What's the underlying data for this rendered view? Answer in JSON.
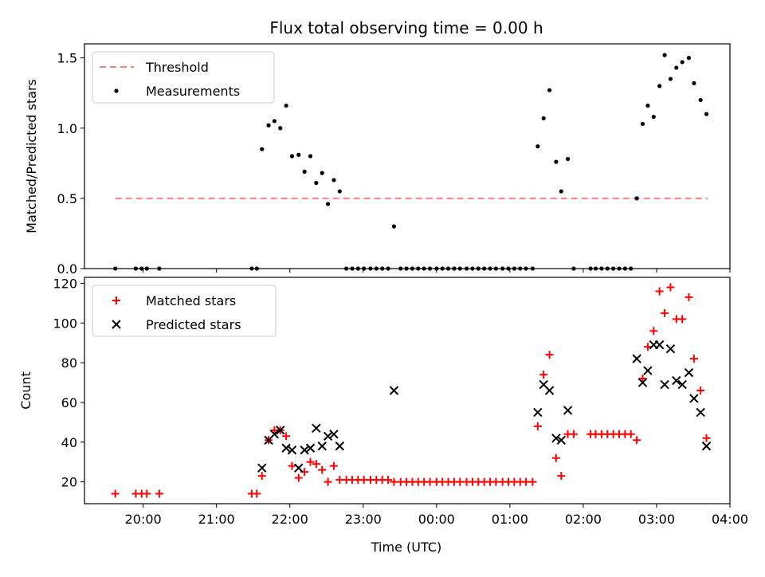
{
  "chart_data": {
    "title": "Flux total observing time = 0.00 h",
    "xlabel": "Time (UTC)",
    "x_ticks": [
      "20:00",
      "21:00",
      "22:00",
      "23:00",
      "00:00",
      "01:00",
      "02:00",
      "03:00",
      "04:00"
    ],
    "x_unit": "hours since 19:00 UTC",
    "xlim": [
      0.2,
      9.0
    ],
    "colors": {
      "threshold": "#ff7f7f",
      "measurements": "#000000",
      "matched": "#ff0000",
      "predicted": "#000000"
    },
    "subplots": [
      {
        "type": "scatter",
        "ylabel": "Matched/Predicted stars",
        "ylim": [
          0,
          1.6
        ],
        "y_ticks": [
          "0.0",
          "0.5",
          "1.0",
          "1.5"
        ],
        "legend": {
          "position": "top-left",
          "entries": [
            "Threshold",
            "Measurements"
          ]
        },
        "threshold": {
          "name": "Threshold",
          "y": 0.5,
          "x_range": [
            0.62,
            8.7
          ]
        },
        "series": [
          {
            "name": "Measurements",
            "points": [
              [
                0.62,
                0
              ],
              [
                0.9,
                0
              ],
              [
                0.98,
                0
              ],
              [
                1.05,
                0
              ],
              [
                1.22,
                0
              ],
              [
                2.48,
                0
              ],
              [
                2.55,
                0
              ],
              [
                2.62,
                0.85
              ],
              [
                2.71,
                1.02
              ],
              [
                2.79,
                1.05
              ],
              [
                2.87,
                1.0
              ],
              [
                2.95,
                1.16
              ],
              [
                3.03,
                0.8
              ],
              [
                3.12,
                0.81
              ],
              [
                3.2,
                0.69
              ],
              [
                3.28,
                0.8
              ],
              [
                3.36,
                0.61
              ],
              [
                3.44,
                0.68
              ],
              [
                3.52,
                0.46
              ],
              [
                3.6,
                0.63
              ],
              [
                3.68,
                0.55
              ],
              [
                3.77,
                0
              ],
              [
                3.85,
                0
              ],
              [
                3.93,
                0
              ],
              [
                4.01,
                0
              ],
              [
                4.1,
                0
              ],
              [
                4.18,
                0
              ],
              [
                4.26,
                0
              ],
              [
                4.34,
                0
              ],
              [
                4.42,
                0.3
              ],
              [
                4.51,
                0
              ],
              [
                4.59,
                0
              ],
              [
                4.67,
                0
              ],
              [
                4.75,
                0
              ],
              [
                4.83,
                0
              ],
              [
                4.91,
                0
              ],
              [
                5.0,
                0
              ],
              [
                5.08,
                0
              ],
              [
                5.16,
                0
              ],
              [
                5.24,
                0
              ],
              [
                5.32,
                0
              ],
              [
                5.41,
                0
              ],
              [
                5.49,
                0
              ],
              [
                5.57,
                0
              ],
              [
                5.65,
                0
              ],
              [
                5.73,
                0
              ],
              [
                5.81,
                0
              ],
              [
                5.9,
                0
              ],
              [
                5.98,
                0
              ],
              [
                6.06,
                0
              ],
              [
                6.14,
                0
              ],
              [
                6.22,
                0
              ],
              [
                6.31,
                0
              ],
              [
                6.38,
                0.87
              ],
              [
                6.46,
                1.07
              ],
              [
                6.54,
                1.27
              ],
              [
                6.63,
                0.76
              ],
              [
                6.7,
                0.55
              ],
              [
                6.79,
                0.78
              ],
              [
                6.87,
                0
              ],
              [
                7.1,
                0
              ],
              [
                7.17,
                0
              ],
              [
                7.25,
                0
              ],
              [
                7.33,
                0
              ],
              [
                7.41,
                0
              ],
              [
                7.49,
                0
              ],
              [
                7.57,
                0
              ],
              [
                7.65,
                0
              ],
              [
                7.73,
                0.5
              ],
              [
                7.81,
                1.03
              ],
              [
                7.88,
                1.16
              ],
              [
                7.96,
                1.08
              ],
              [
                8.04,
                1.3
              ],
              [
                8.11,
                1.52
              ],
              [
                8.19,
                1.35
              ],
              [
                8.27,
                1.43
              ],
              [
                8.35,
                1.47
              ],
              [
                8.44,
                1.5
              ],
              [
                8.51,
                1.32
              ],
              [
                8.6,
                1.2
              ],
              [
                8.68,
                1.1
              ]
            ]
          }
        ]
      },
      {
        "type": "scatter",
        "ylabel": "Count",
        "ylim": [
          9,
          123
        ],
        "y_ticks": [
          "20",
          "40",
          "60",
          "80",
          "100",
          "120"
        ],
        "legend": {
          "position": "top-left",
          "entries": [
            "Matched stars",
            "Predicted stars"
          ]
        },
        "series": [
          {
            "name": "Matched stars",
            "marker": "plus",
            "points": [
              [
                0.62,
                14
              ],
              [
                0.9,
                14
              ],
              [
                0.98,
                14
              ],
              [
                1.05,
                14
              ],
              [
                1.22,
                14
              ],
              [
                2.48,
                14
              ],
              [
                2.55,
                14
              ],
              [
                2.62,
                23
              ],
              [
                2.71,
                41
              ],
              [
                2.79,
                46
              ],
              [
                2.87,
                46
              ],
              [
                2.95,
                43
              ],
              [
                3.03,
                28
              ],
              [
                3.12,
                22
              ],
              [
                3.2,
                25
              ],
              [
                3.28,
                30
              ],
              [
                3.36,
                29
              ],
              [
                3.44,
                26
              ],
              [
                3.52,
                20
              ],
              [
                3.6,
                28
              ],
              [
                3.68,
                21
              ],
              [
                3.77,
                21
              ],
              [
                3.85,
                21
              ],
              [
                3.93,
                21
              ],
              [
                4.01,
                21
              ],
              [
                4.1,
                21
              ],
              [
                4.18,
                21
              ],
              [
                4.26,
                21
              ],
              [
                4.34,
                21
              ],
              [
                4.42,
                20
              ],
              [
                4.51,
                20
              ],
              [
                4.59,
                20
              ],
              [
                4.67,
                20
              ],
              [
                4.75,
                20
              ],
              [
                4.83,
                20
              ],
              [
                4.91,
                20
              ],
              [
                5.0,
                20
              ],
              [
                5.08,
                20
              ],
              [
                5.16,
                20
              ],
              [
                5.24,
                20
              ],
              [
                5.32,
                20
              ],
              [
                5.41,
                20
              ],
              [
                5.49,
                20
              ],
              [
                5.57,
                20
              ],
              [
                5.65,
                20
              ],
              [
                5.73,
                20
              ],
              [
                5.81,
                20
              ],
              [
                5.9,
                20
              ],
              [
                5.98,
                20
              ],
              [
                6.06,
                20
              ],
              [
                6.14,
                20
              ],
              [
                6.22,
                20
              ],
              [
                6.31,
                20
              ],
              [
                6.38,
                48
              ],
              [
                6.46,
                74
              ],
              [
                6.54,
                84
              ],
              [
                6.63,
                32
              ],
              [
                6.7,
                23
              ],
              [
                6.79,
                44
              ],
              [
                6.87,
                44
              ],
              [
                7.1,
                44
              ],
              [
                7.17,
                44
              ],
              [
                7.25,
                44
              ],
              [
                7.33,
                44
              ],
              [
                7.41,
                44
              ],
              [
                7.49,
                44
              ],
              [
                7.57,
                44
              ],
              [
                7.65,
                44
              ],
              [
                7.73,
                41
              ],
              [
                7.81,
                72
              ],
              [
                7.88,
                88
              ],
              [
                7.96,
                96
              ],
              [
                8.04,
                116
              ],
              [
                8.11,
                105
              ],
              [
                8.19,
                118
              ],
              [
                8.27,
                102
              ],
              [
                8.35,
                102
              ],
              [
                8.44,
                113
              ],
              [
                8.51,
                82
              ],
              [
                8.6,
                66
              ],
              [
                8.68,
                42
              ]
            ]
          },
          {
            "name": "Predicted stars",
            "marker": "x",
            "points": [
              [
                2.62,
                27
              ],
              [
                2.71,
                41
              ],
              [
                2.79,
                44
              ],
              [
                2.87,
                46
              ],
              [
                2.95,
                37
              ],
              [
                3.03,
                36
              ],
              [
                3.12,
                27
              ],
              [
                3.2,
                36
              ],
              [
                3.28,
                37
              ],
              [
                3.36,
                47
              ],
              [
                3.44,
                38
              ],
              [
                3.52,
                43
              ],
              [
                3.6,
                44
              ],
              [
                3.68,
                38
              ],
              [
                4.42,
                66
              ],
              [
                6.38,
                55
              ],
              [
                6.46,
                69
              ],
              [
                6.54,
                66
              ],
              [
                6.63,
                42
              ],
              [
                6.7,
                41
              ],
              [
                6.79,
                56
              ],
              [
                7.73,
                82
              ],
              [
                7.81,
                70
              ],
              [
                7.88,
                76
              ],
              [
                7.96,
                89
              ],
              [
                8.04,
                89
              ],
              [
                8.11,
                69
              ],
              [
                8.19,
                87
              ],
              [
                8.27,
                71
              ],
              [
                8.35,
                69
              ],
              [
                8.44,
                75
              ],
              [
                8.51,
                62
              ],
              [
                8.6,
                55
              ],
              [
                8.68,
                38
              ]
            ]
          }
        ]
      }
    ]
  }
}
